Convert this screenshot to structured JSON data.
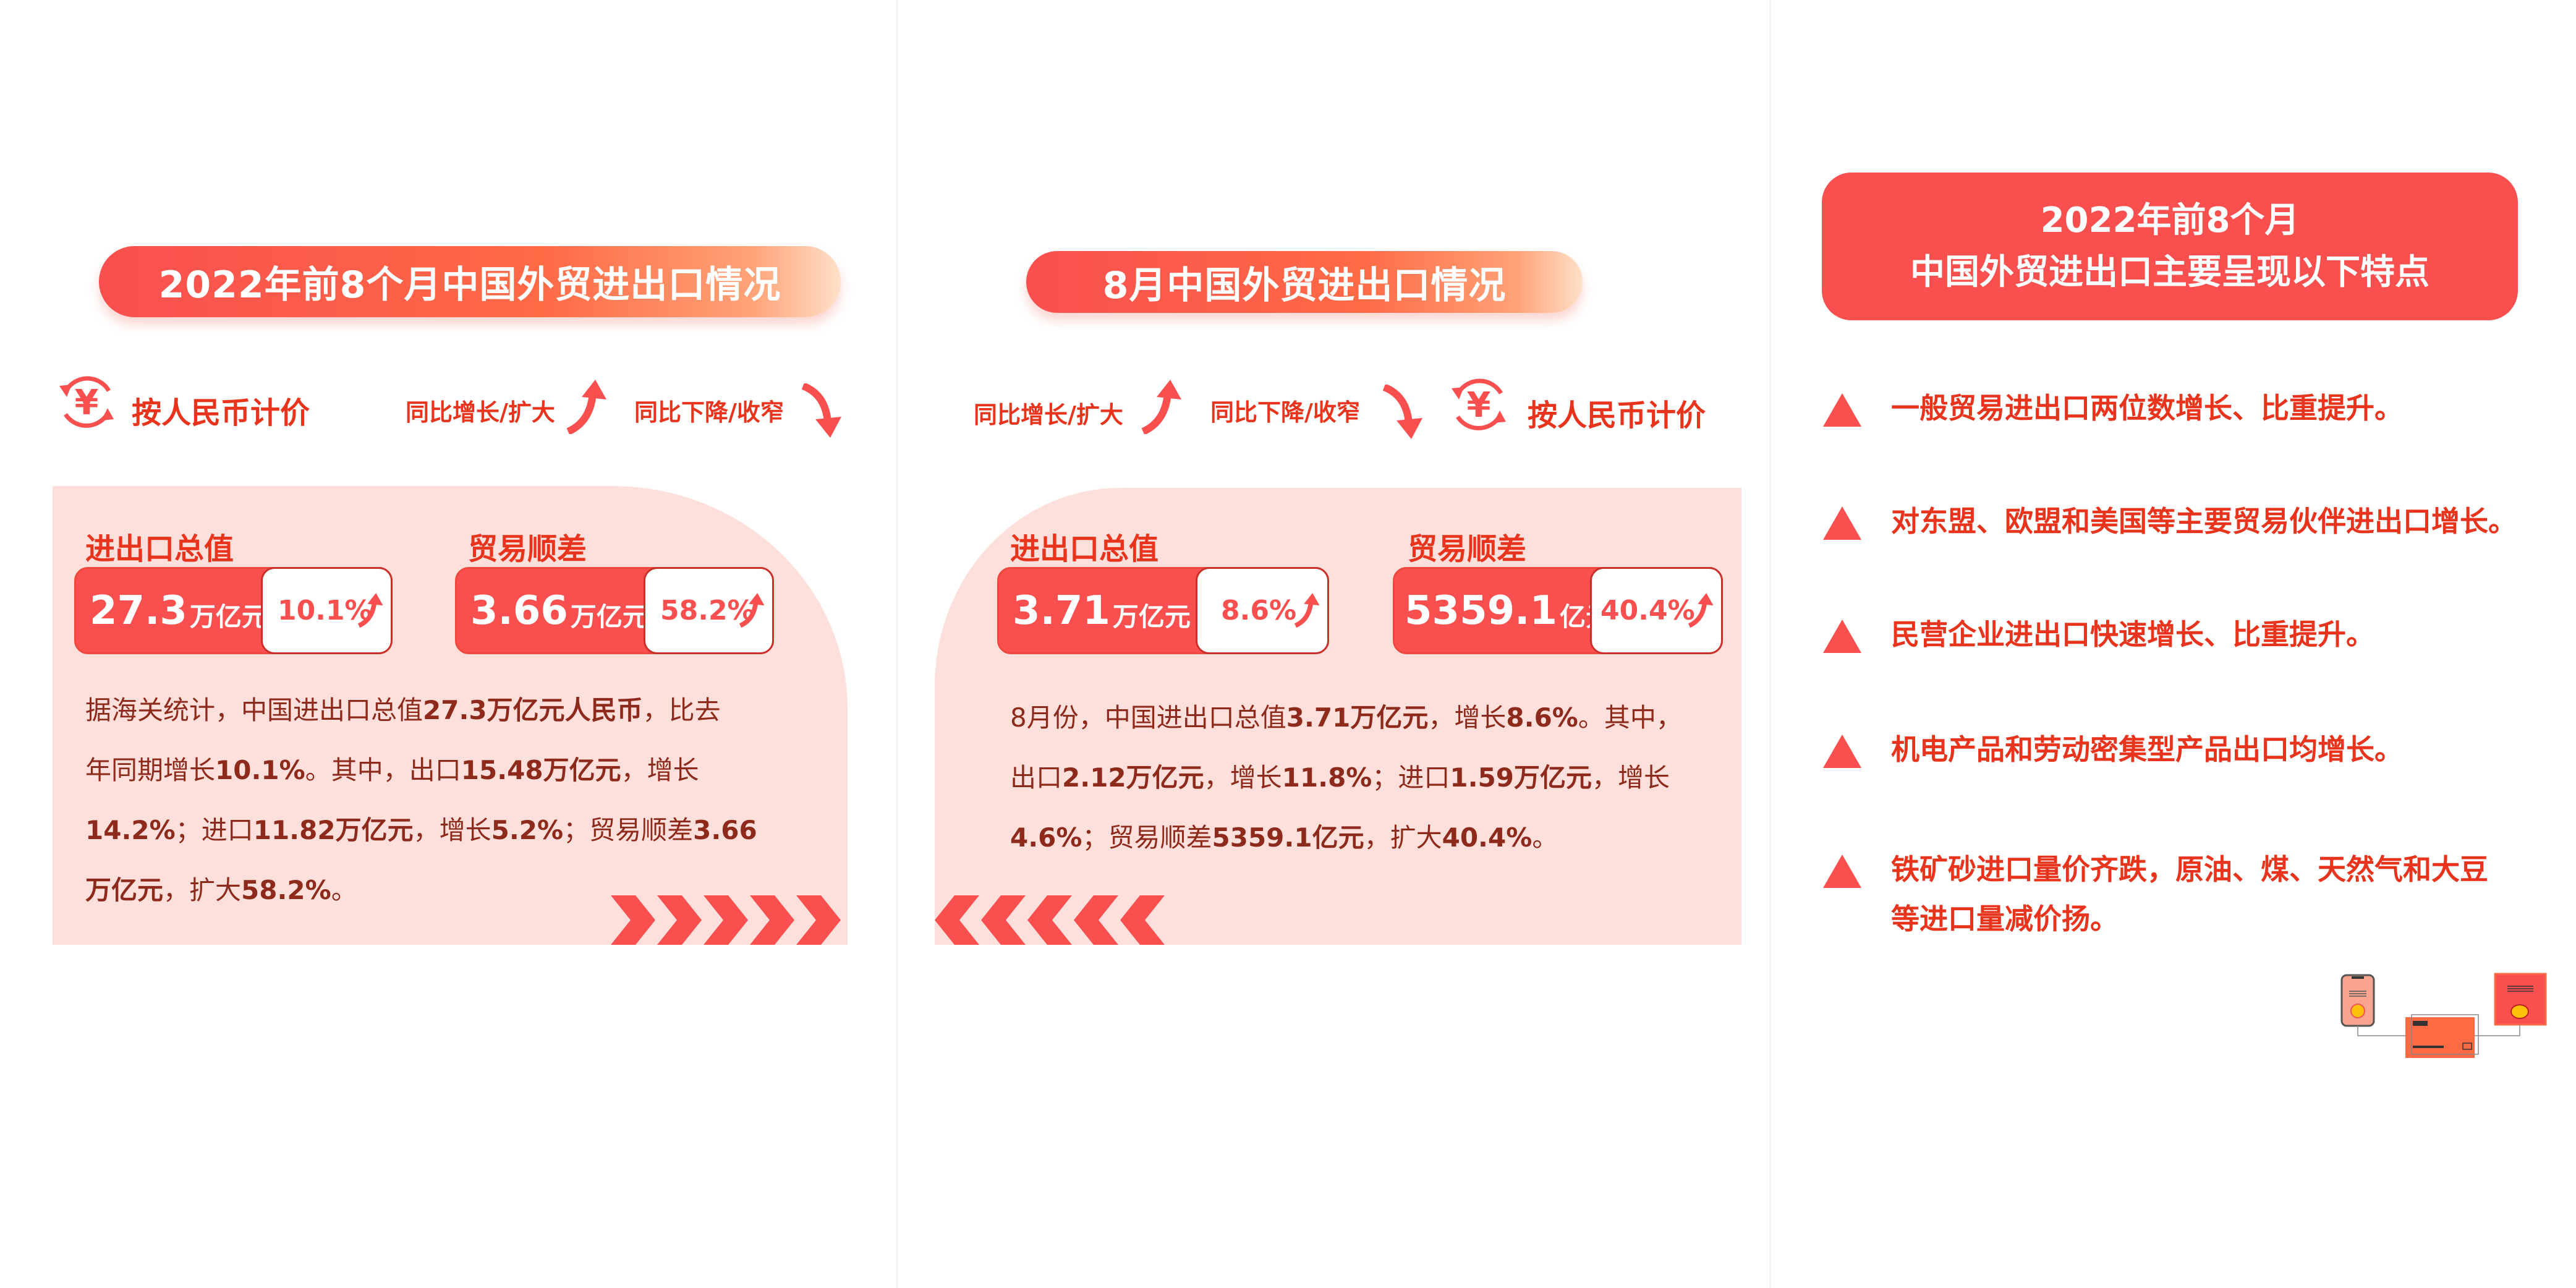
{
  "colors": {
    "accent": "#f94f4f",
    "label": "#e8341c",
    "text": "#8e2a1b",
    "panel_bg": "#fde0db"
  },
  "left": {
    "title": "2022年前8个月中国外贸进出口情况",
    "rmb_label": "按人民币计价",
    "up_label": "同比增长/扩大",
    "down_label": "同比下降/收窄",
    "total": {
      "label": "进出口总值",
      "value": "27.3",
      "unit": "万亿元",
      "change": "10.1%"
    },
    "surplus": {
      "label": "贸易顺差",
      "value": "3.66",
      "unit": "万亿元",
      "change": "58.2%"
    },
    "paragraph": [
      [
        {
          "t": "据海关统计，中国进出口总值"
        },
        {
          "t": "27.3万亿元人民币",
          "b": true
        },
        {
          "t": "，比去"
        }
      ],
      [
        {
          "t": "年同期增长"
        },
        {
          "t": "10.1%",
          "b": true
        },
        {
          "t": "。其中，出口"
        },
        {
          "t": "15.48万亿元",
          "b": true
        },
        {
          "t": "，增长"
        }
      ],
      [
        {
          "t": "14.2%",
          "b": true
        },
        {
          "t": "；进口"
        },
        {
          "t": "11.82万亿元",
          "b": true
        },
        {
          "t": "，增长"
        },
        {
          "t": "5.2%",
          "b": true
        },
        {
          "t": "；贸易顺差"
        },
        {
          "t": "3.66",
          "b": true
        }
      ],
      [
        {
          "t": "万亿元",
          "b": true
        },
        {
          "t": "，扩大"
        },
        {
          "t": "58.2%",
          "b": true
        },
        {
          "t": "。"
        }
      ]
    ]
  },
  "middle": {
    "title": "8月中国外贸进出口情况",
    "rmb_label": "按人民币计价",
    "up_label": "同比增长/扩大",
    "down_label": "同比下降/收窄",
    "total": {
      "label": "进出口总值",
      "value": "3.71",
      "unit": "万亿元",
      "change": "8.6%"
    },
    "surplus": {
      "label": "贸易顺差",
      "value": "5359.1",
      "unit": "亿元",
      "change": "40.4%"
    },
    "paragraph": [
      [
        {
          "t": "8月份，中国进出口总值"
        },
        {
          "t": "3.71万亿元",
          "b": true
        },
        {
          "t": "，增长"
        },
        {
          "t": "8.6%",
          "b": true
        },
        {
          "t": "。其中，"
        }
      ],
      [
        {
          "t": "出口"
        },
        {
          "t": "2.12万亿元",
          "b": true
        },
        {
          "t": "，增长"
        },
        {
          "t": "11.8%",
          "b": true
        },
        {
          "t": "；进口"
        },
        {
          "t": "1.59万亿元",
          "b": true
        },
        {
          "t": "，增长"
        }
      ],
      [
        {
          "t": "4.6%",
          "b": true
        },
        {
          "t": "；贸易顺差"
        },
        {
          "t": "5359.1亿元",
          "b": true
        },
        {
          "t": "，扩大"
        },
        {
          "t": "40.4%",
          "b": true
        },
        {
          "t": "。"
        }
      ]
    ]
  },
  "right": {
    "title_line1": "2022年前8个月",
    "title_line2": "中国外贸进出口主要呈现以下特点",
    "bullets": [
      [
        "一般贸易进出口两位数增长、比重提升。"
      ],
      [
        "对东盟、欧盟和美国等主要贸易伙伴进出口增长。"
      ],
      [
        "民营企业进出口快速增长、比重提升。"
      ],
      [
        "机电产品和劳动密集型产品出口均增长。"
      ],
      [
        "铁矿砂进口量价齐跌，原油、煤、天然气和大豆",
        "等进口量减价扬。"
      ]
    ]
  }
}
